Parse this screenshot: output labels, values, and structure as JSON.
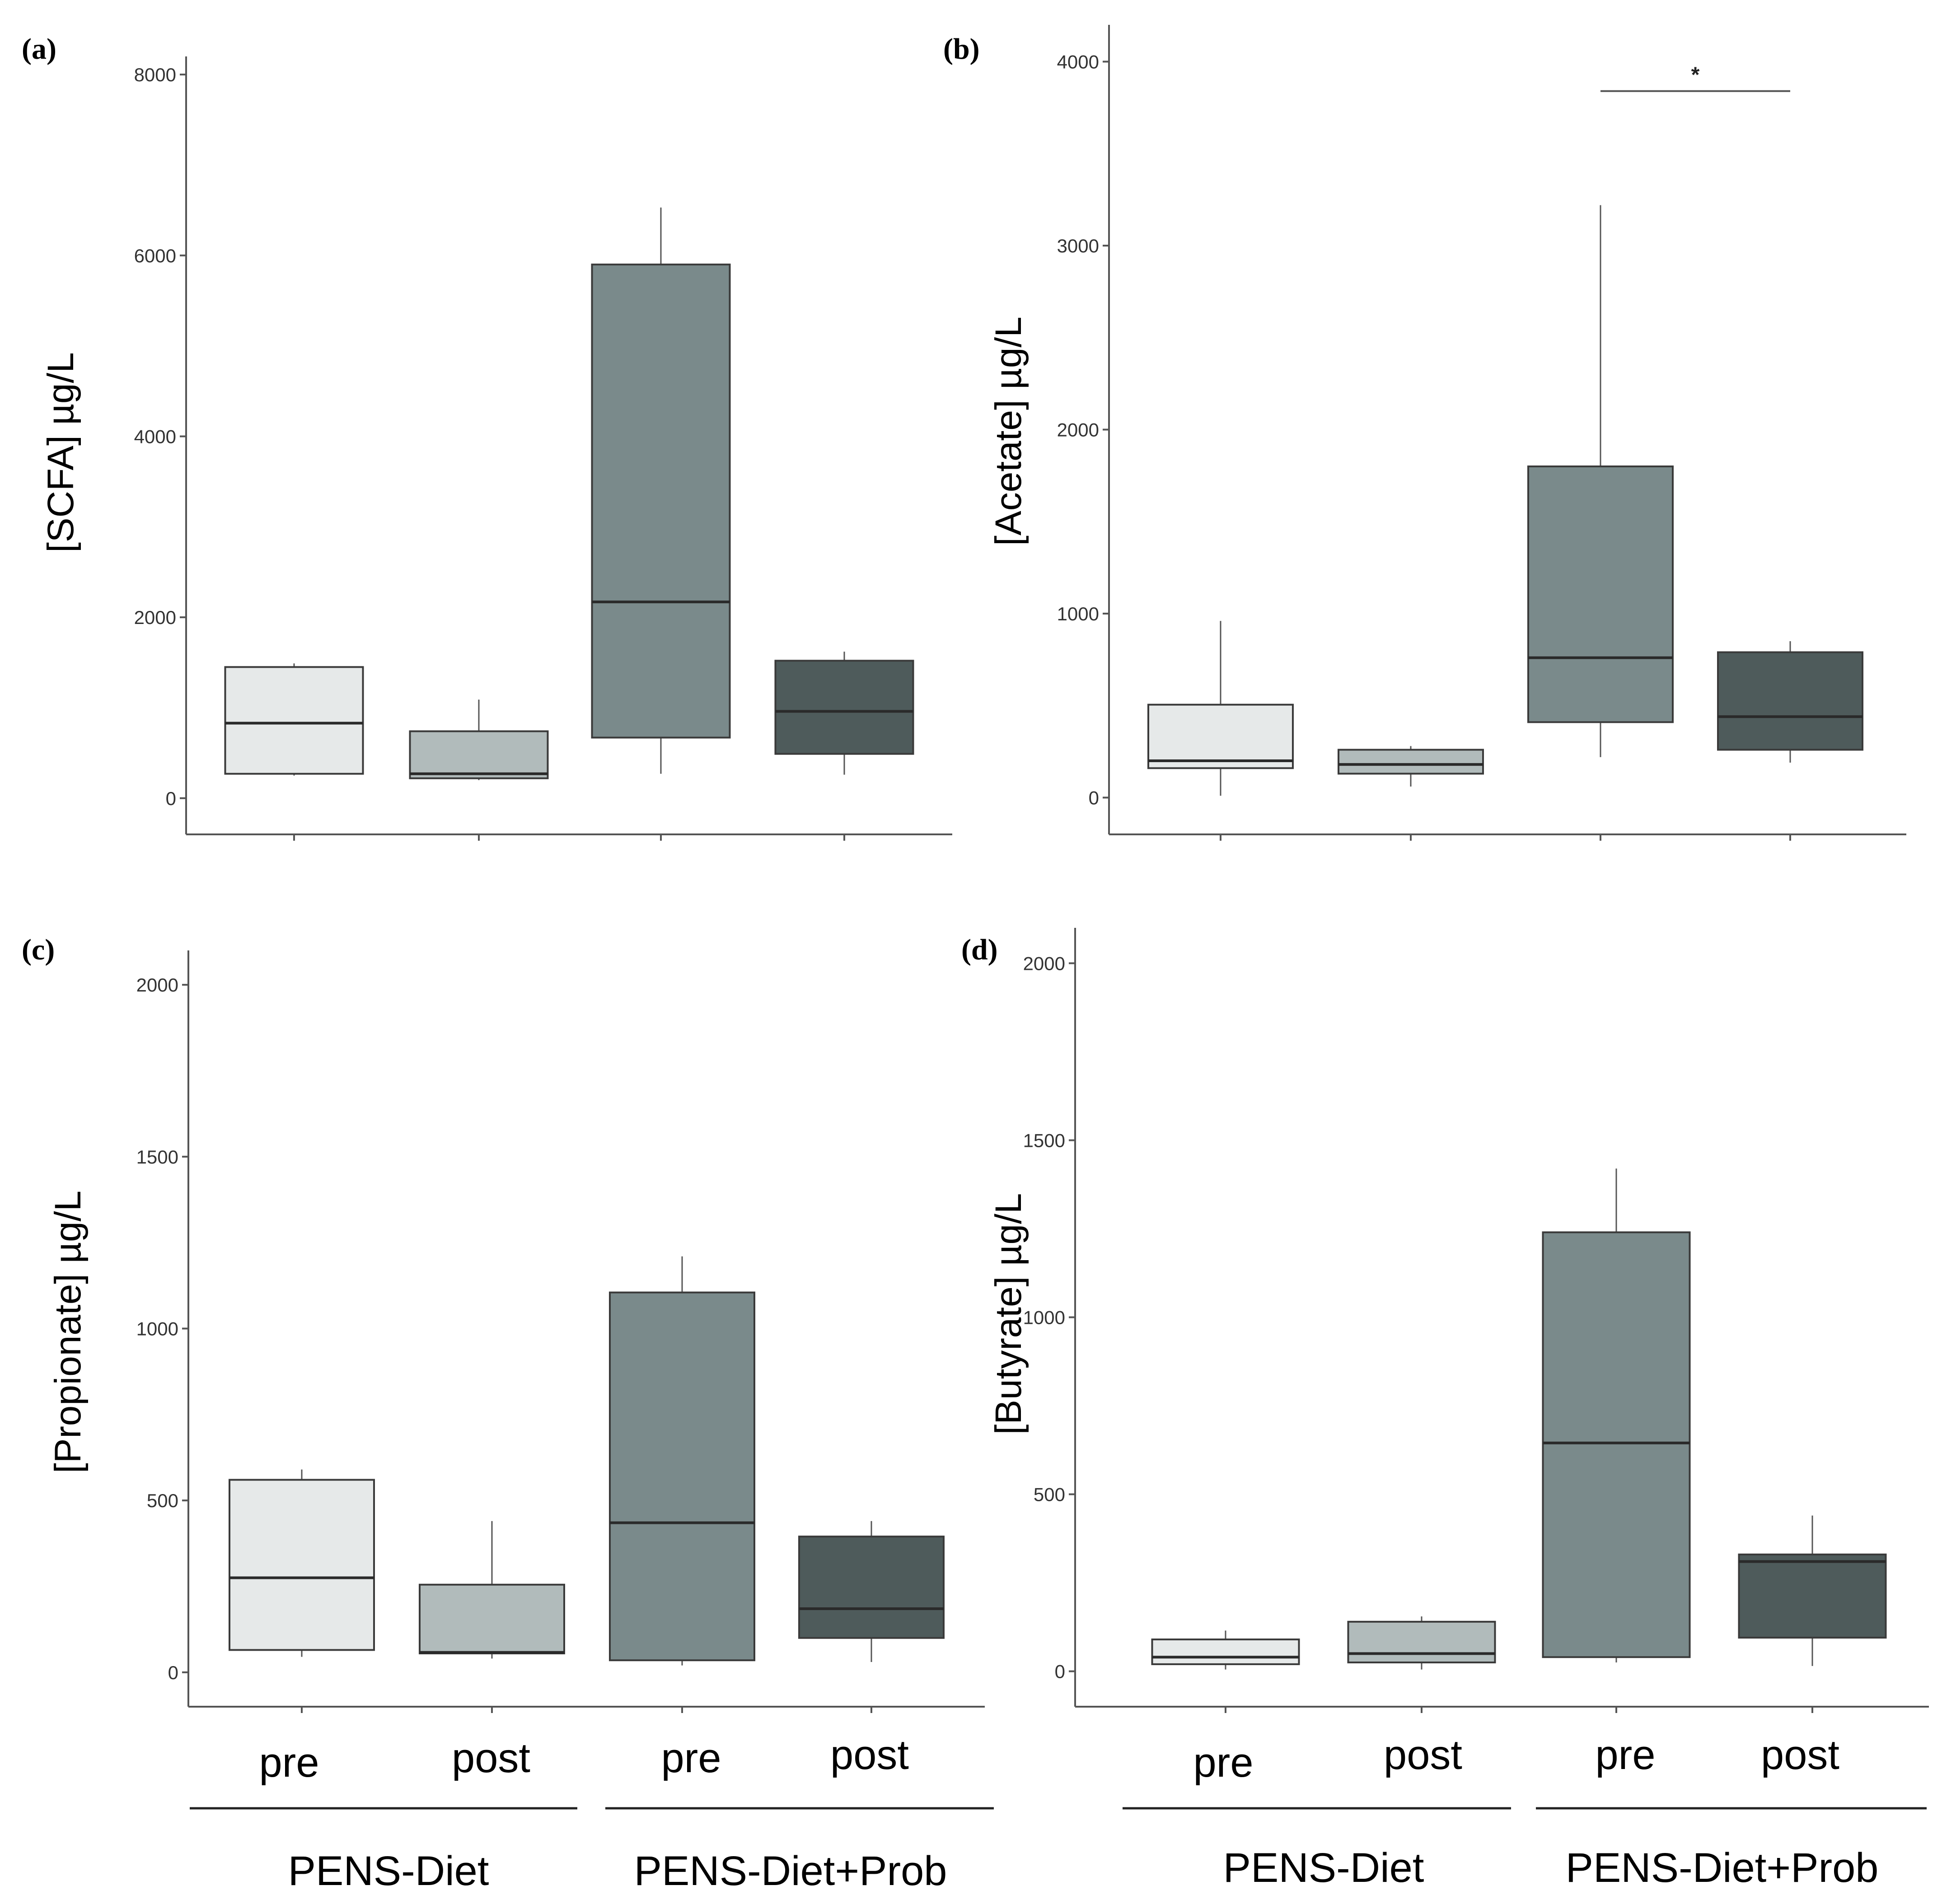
{
  "figure": {
    "colors": {
      "pre_diet": "#e6e9e9",
      "post_diet": "#b1bbbb",
      "pre_prob": "#7a8a8b",
      "post_prob": "#4e5b5b",
      "stroke": "#3a3a3a",
      "axis": "#555555"
    },
    "x_labels": [
      "pre",
      "post",
      "pre",
      "post"
    ],
    "groups": [
      "PENS-Diet",
      "PENS-Diet+Prob"
    ]
  },
  "chart_data": [
    {
      "id": "a",
      "type": "box",
      "label": "(a)",
      "title": "",
      "ylabel": "[SCFA] µg/L",
      "ylim": [
        -400,
        8200
      ],
      "yticks": [
        0,
        2000,
        4000,
        6000,
        8000
      ],
      "categories": [
        "pre",
        "post",
        "pre",
        "post"
      ],
      "boxes": [
        {
          "group": "PENS-Diet",
          "time": "pre",
          "min": 250,
          "q1": 270,
          "median": 830,
          "q3": 1450,
          "max": 1490
        },
        {
          "group": "PENS-Diet",
          "time": "post",
          "min": 200,
          "q1": 220,
          "median": 270,
          "q3": 740,
          "max": 1090
        },
        {
          "group": "PENS-Diet+Prob",
          "time": "pre",
          "min": 270,
          "q1": 670,
          "median": 2170,
          "q3": 5900,
          "max": 6530
        },
        {
          "group": "PENS-Diet+Prob",
          "time": "post",
          "min": 260,
          "q1": 490,
          "median": 960,
          "q3": 1520,
          "max": 1620
        }
      ],
      "significance": []
    },
    {
      "id": "b",
      "type": "box",
      "label": "(b)",
      "title": "",
      "ylabel": "[Acetate] µg/L",
      "ylim": [
        -200,
        4200
      ],
      "yticks": [
        0,
        1000,
        2000,
        3000,
        4000
      ],
      "categories": [
        "pre",
        "post",
        "pre",
        "post"
      ],
      "boxes": [
        {
          "group": "PENS-Diet",
          "time": "pre",
          "min": 10,
          "q1": 160,
          "median": 200,
          "q3": 505,
          "max": 960
        },
        {
          "group": "PENS-Diet",
          "time": "post",
          "min": 60,
          "q1": 130,
          "median": 180,
          "q3": 260,
          "max": 280
        },
        {
          "group": "PENS-Diet+Prob",
          "time": "pre",
          "min": 220,
          "q1": 410,
          "median": 760,
          "q3": 1800,
          "max": 3220
        },
        {
          "group": "PENS-Diet+Prob",
          "time": "post",
          "min": 190,
          "q1": 260,
          "median": 440,
          "q3": 790,
          "max": 850
        }
      ],
      "significance": [
        {
          "from": 2,
          "to": 3,
          "label": "*",
          "y": 3840
        }
      ]
    },
    {
      "id": "c",
      "type": "box",
      "label": "(c)",
      "title": "",
      "ylabel": "[Propionate] µg/L",
      "ylim": [
        -100,
        2100
      ],
      "yticks": [
        0,
        500,
        1000,
        1500,
        2000
      ],
      "categories": [
        "pre",
        "post",
        "pre",
        "post"
      ],
      "boxes": [
        {
          "group": "PENS-Diet",
          "time": "pre",
          "min": 45,
          "q1": 65,
          "median": 275,
          "q3": 560,
          "max": 590
        },
        {
          "group": "PENS-Diet",
          "time": "post",
          "min": 40,
          "q1": 55,
          "median": 58,
          "q3": 255,
          "max": 440
        },
        {
          "group": "PENS-Diet+Prob",
          "time": "pre",
          "min": 20,
          "q1": 35,
          "median": 435,
          "q3": 1105,
          "max": 1210
        },
        {
          "group": "PENS-Diet+Prob",
          "time": "post",
          "min": 30,
          "q1": 100,
          "median": 185,
          "q3": 395,
          "max": 440
        }
      ],
      "significance": []
    },
    {
      "id": "d",
      "type": "box",
      "label": "(d)",
      "title": "",
      "ylabel": "[Butyrate] µg/L",
      "ylim": [
        -100,
        2100
      ],
      "yticks": [
        0,
        500,
        1000,
        1500,
        2000
      ],
      "categories": [
        "pre",
        "post",
        "pre",
        "post"
      ],
      "boxes": [
        {
          "group": "PENS-Diet",
          "time": "pre",
          "min": 5,
          "q1": 20,
          "median": 40,
          "q3": 90,
          "max": 115
        },
        {
          "group": "PENS-Diet",
          "time": "post",
          "min": 5,
          "q1": 25,
          "median": 50,
          "q3": 140,
          "max": 155
        },
        {
          "group": "PENS-Diet+Prob",
          "time": "pre",
          "min": 25,
          "q1": 40,
          "median": 645,
          "q3": 1240,
          "max": 1420
        },
        {
          "group": "PENS-Diet+Prob",
          "time": "post",
          "min": 15,
          "q1": 95,
          "median": 310,
          "q3": 330,
          "max": 440
        }
      ],
      "significance": []
    }
  ]
}
